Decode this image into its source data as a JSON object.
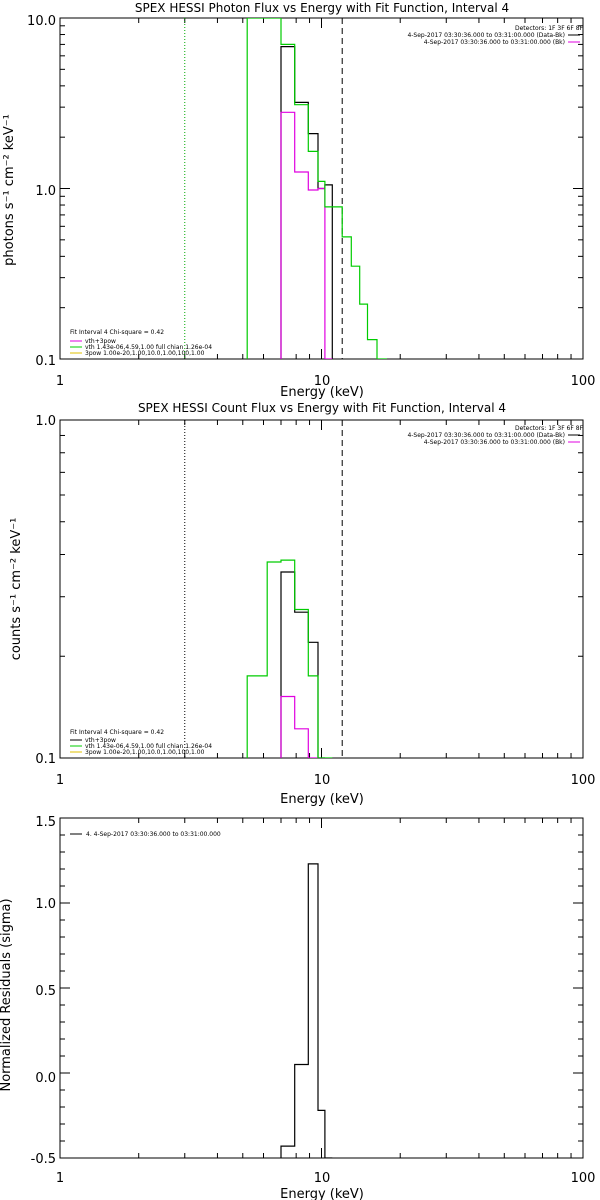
{
  "chart_data": [
    {
      "type": "line",
      "title": "SPEX HESSI Photon Flux vs Energy with Fit Function, Interval 4",
      "xlabel": "Energy (keV)",
      "ylabel": "photons s⁻¹ cm⁻² keV⁻¹",
      "xscale": "log",
      "yscale": "log",
      "xlim": [
        1,
        100
      ],
      "ylim": [
        0.1,
        10
      ],
      "xticks": [
        "1",
        "10",
        "100"
      ],
      "yticks": [
        "10.0",
        "1.0",
        "0.1"
      ],
      "legend_topright": {
        "header": "Detectors: 1F 3F 6F 8F",
        "entries": [
          {
            "text": "4-Sep-2017 03:30:36.000 to 03:31:00.000 (Data-Bk)",
            "color": "#000000"
          },
          {
            "text": "4-Sep-2017 03:30:36.000 to 03:31:00.000 (Bk)",
            "color": "#e000e0"
          }
        ]
      },
      "legend_bottomleft": {
        "header": "Fit Interval 4   Chi-square = 0.42",
        "entries": [
          {
            "text": "vth+3pow",
            "color": "#e000e0"
          },
          {
            "text": "vth 1.43e-06,4.59,1.00  full chian 1.26e-04",
            "color": "#00cc00"
          },
          {
            "text": "3pow 1.00e-20,1.00,10.0,1.00,100,1.00",
            "color": "#e0c000"
          }
        ]
      },
      "vlines": [
        {
          "x": 3.0,
          "style": "dotted",
          "color": "#00aa00"
        },
        {
          "x": 12.0,
          "style": "dashed",
          "color": "#000000"
        }
      ],
      "series": [
        {
          "label": "Data-Bk",
          "color": "#000000",
          "edges": [
            7.0,
            7.9,
            8.9,
            9.7,
            10.3,
            11.0
          ],
          "values": [
            6.8,
            3.2,
            2.1,
            1.0,
            1.05
          ]
        },
        {
          "label": "Bk",
          "color": "#e000e0",
          "edges": [
            7.0,
            7.9,
            8.9,
            9.7,
            10.3,
            11.0
          ],
          "values": [
            2.8,
            1.25,
            0.98,
            1.0,
            0.1
          ]
        },
        {
          "label": "fit",
          "color": "#00cc00",
          "edges": [
            5.2,
            6.2,
            7.0,
            7.9,
            8.9,
            9.7,
            10.3,
            11.0,
            12.0,
            13.0,
            14.0,
            15.0,
            16.3,
            17.8
          ],
          "values": [
            10.0,
            13.0,
            7.0,
            3.1,
            1.65,
            1.1,
            0.78,
            0.78,
            0.52,
            0.35,
            0.21,
            0.13,
            0.1
          ]
        }
      ]
    },
    {
      "type": "line",
      "title": "SPEX HESSI Count Flux vs Energy with Fit Function, Interval 4",
      "xlabel": "Energy (keV)",
      "ylabel": "counts s⁻¹ cm⁻² keV⁻¹",
      "xscale": "log",
      "yscale": "log",
      "xlim": [
        1,
        100
      ],
      "ylim": [
        0.1,
        1.0
      ],
      "xticks": [
        "1",
        "10",
        "100"
      ],
      "yticks": [
        "1.0",
        "0.1"
      ],
      "legend_topright": {
        "header": "Detectors: 1F 3F 6F 8F",
        "entries": [
          {
            "text": "4-Sep-2017 03:30:36.000 to 03:31:00.000 (Data-Bk)",
            "color": "#000000"
          },
          {
            "text": "4-Sep-2017 03:30:36.000 to 03:31:00.000 (Bk)",
            "color": "#e000e0"
          }
        ]
      },
      "legend_bottomleft": {
        "header": "Fit Interval 4   Chi-square = 0.42",
        "entries": [
          {
            "text": "vth+3pow",
            "color": "#000000"
          },
          {
            "text": "vth 1.43e-06,4.59,1.00  full chian 1.26e-04",
            "color": "#00cc00"
          },
          {
            "text": "3pow 1.00e-20,1.00,10.0,1.00,100,1.00",
            "color": "#e0c000"
          }
        ]
      },
      "vlines": [
        {
          "x": 3.0,
          "style": "dotted",
          "color": "#000000"
        },
        {
          "x": 12.0,
          "style": "dashed",
          "color": "#000000"
        }
      ],
      "series": [
        {
          "label": "Data-Bk",
          "color": "#000000",
          "edges": [
            7.0,
            7.9,
            8.9,
            9.7,
            10.3
          ],
          "values": [
            0.355,
            0.27,
            0.22,
            0.1
          ]
        },
        {
          "label": "Bk",
          "color": "#e000e0",
          "edges": [
            7.0,
            7.9,
            8.9,
            9.7
          ],
          "values": [
            0.152,
            0.122,
            0.1
          ]
        },
        {
          "label": "fit",
          "color": "#00cc00",
          "edges": [
            5.2,
            6.2,
            7.0,
            7.9,
            8.9,
            9.7,
            10.3,
            11.0
          ],
          "values": [
            0.175,
            0.38,
            0.385,
            0.275,
            0.175,
            0.1,
            0.1
          ]
        }
      ]
    },
    {
      "type": "line",
      "title": "",
      "xlabel": "Energy (keV)",
      "ylabel": "Normalized Residuals (sigma)",
      "xscale": "log",
      "yscale": "linear",
      "xlim": [
        1,
        100
      ],
      "ylim": [
        -0.5,
        1.5
      ],
      "xticks": [
        "1",
        "10",
        "100"
      ],
      "yticks": [
        "1.5",
        "1.0",
        "0.5",
        "0.0",
        "-0.5"
      ],
      "legend_topleft": {
        "entries": [
          {
            "text": "4.  4-Sep-2017 03:30:36.000 to 03:31:00.000",
            "color": "#000000"
          }
        ]
      },
      "series": [
        {
          "label": "residuals",
          "color": "#000000",
          "edges": [
            7.0,
            7.9,
            8.9,
            9.7,
            10.3,
            11.0
          ],
          "values": [
            -0.43,
            0.05,
            1.23,
            -0.22,
            -0.5
          ]
        }
      ]
    }
  ]
}
